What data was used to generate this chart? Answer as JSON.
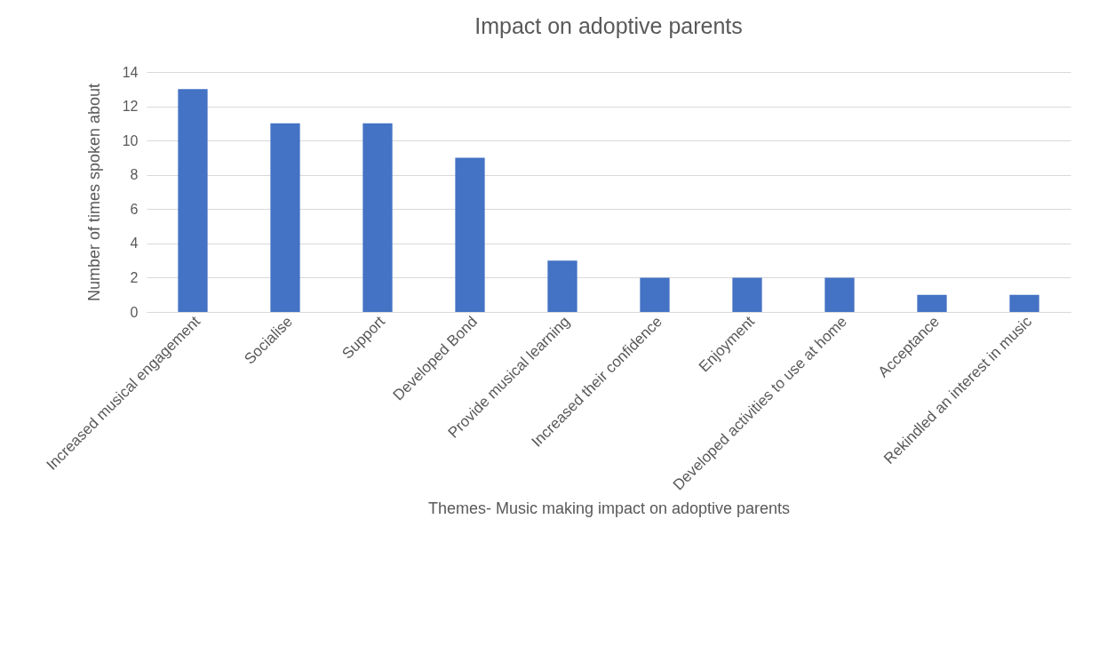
{
  "chart_data": {
    "type": "bar",
    "title": "Impact on adoptive parents",
    "xlabel": "Themes- Music making impact on adoptive parents",
    "ylabel": "Number of times spoken about",
    "categories": [
      "Increased musical engagement",
      "Socialise",
      "Support",
      "Developed Bond",
      "Provide musical learning",
      "Increased their confidence",
      "Enjoyment",
      "Developed activities to use at home",
      "Acceptance",
      "Rekindled an interest in music"
    ],
    "values": [
      13,
      11,
      11,
      9,
      3,
      2,
      2,
      2,
      1,
      1
    ],
    "color": "#4472c4",
    "ylim": [
      0,
      14
    ],
    "yticks": [
      0,
      2,
      4,
      6,
      8,
      10,
      12,
      14
    ],
    "grid": "y"
  }
}
